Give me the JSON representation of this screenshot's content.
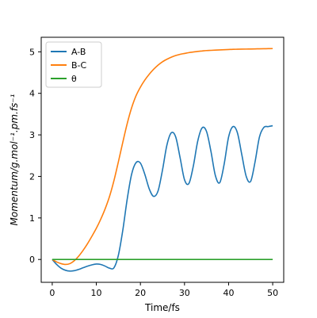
{
  "chart_data": {
    "type": "line",
    "title": "",
    "xlabel": "Time/fs",
    "ylabel": "Momentum/g.mol⁻¹.pm.fs⁻¹",
    "xlim": [
      -2.5,
      52.5
    ],
    "ylim": [
      -0.55,
      5.35
    ],
    "xticks": [
      "0",
      "10",
      "20",
      "30",
      "40",
      "50"
    ],
    "yticks": [
      "0",
      "1",
      "2",
      "3",
      "4",
      "5"
    ],
    "grid": false,
    "legend_position": "top-left",
    "series": [
      {
        "name": "A-B",
        "color": "#1f77b4",
        "x": [
          0,
          1,
          2,
          3,
          4,
          5,
          6,
          7,
          8,
          9,
          10,
          11,
          12,
          13,
          14,
          15,
          16,
          17,
          18,
          19,
          20,
          21,
          22,
          23,
          24,
          25,
          26,
          27,
          28,
          29,
          30,
          31,
          32,
          33,
          34,
          35,
          36,
          37,
          38,
          39,
          40,
          41,
          42,
          43,
          44,
          45,
          46,
          47,
          48,
          49,
          50
        ],
        "y": [
          0.0,
          -0.12,
          -0.21,
          -0.26,
          -0.28,
          -0.27,
          -0.24,
          -0.2,
          -0.16,
          -0.13,
          -0.11,
          -0.12,
          -0.16,
          -0.21,
          -0.2,
          0.1,
          0.7,
          1.45,
          2.05,
          2.33,
          2.32,
          2.05,
          1.7,
          1.52,
          1.65,
          2.15,
          2.75,
          3.05,
          2.95,
          2.45,
          1.92,
          1.83,
          2.25,
          2.85,
          3.17,
          3.08,
          2.6,
          2.02,
          1.85,
          2.3,
          2.95,
          3.2,
          3.05,
          2.52,
          2.0,
          1.88,
          2.35,
          2.95,
          3.18,
          3.2,
          3.22
        ]
      },
      {
        "name": "B-C",
        "color": "#ff7f0e",
        "x": [
          0,
          1,
          2,
          3,
          4,
          5,
          6,
          7,
          8,
          9,
          10,
          11,
          12,
          13,
          14,
          15,
          16,
          17,
          18,
          19,
          20,
          21,
          22,
          23,
          24,
          25,
          26,
          27,
          28,
          29,
          30,
          31,
          32,
          33,
          34,
          35,
          36,
          37,
          38,
          39,
          40,
          41,
          42,
          43,
          44,
          45,
          46,
          47,
          48,
          49,
          50
        ],
        "y": [
          0.0,
          -0.06,
          -0.1,
          -0.12,
          -0.1,
          -0.03,
          0.08,
          0.22,
          0.38,
          0.56,
          0.75,
          0.97,
          1.22,
          1.52,
          1.9,
          2.35,
          2.82,
          3.27,
          3.65,
          3.94,
          4.15,
          4.32,
          4.46,
          4.58,
          4.68,
          4.76,
          4.82,
          4.87,
          4.91,
          4.94,
          4.96,
          4.98,
          4.995,
          5.01,
          5.02,
          5.03,
          5.035,
          5.04,
          5.045,
          5.05,
          5.055,
          5.06,
          5.062,
          5.064,
          5.066,
          5.068,
          5.07,
          5.072,
          5.074,
          5.076,
          5.078
        ]
      },
      {
        "name": "θ",
        "color": "#2ca02c",
        "x": [
          0,
          50
        ],
        "y": [
          0.0,
          0.0
        ]
      }
    ]
  }
}
